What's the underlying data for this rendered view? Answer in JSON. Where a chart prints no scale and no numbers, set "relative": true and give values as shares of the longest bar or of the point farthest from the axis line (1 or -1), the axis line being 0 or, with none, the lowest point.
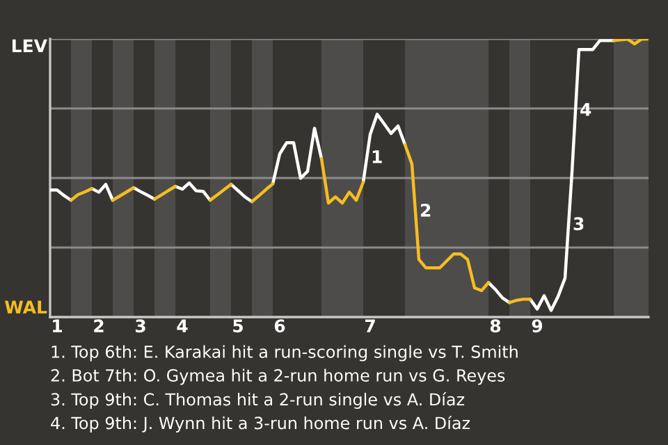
{
  "chart_data": {
    "type": "line",
    "relative": true,
    "categories": [
      null,
      "1",
      null,
      null,
      null,
      null,
      null,
      "2",
      null,
      null,
      null,
      null,
      null,
      "3",
      null,
      null,
      null,
      null,
      null,
      "4",
      null,
      null,
      null,
      null,
      null,
      null,
      null,
      "5",
      null,
      null,
      null,
      null,
      null,
      "6",
      null,
      null,
      null,
      null,
      null,
      null,
      null,
      null,
      null,
      null,
      null,
      null,
      "7",
      null,
      null,
      null,
      null,
      null,
      null,
      null,
      null,
      null,
      null,
      null,
      null,
      null,
      null,
      null,
      null,
      null,
      "8",
      null,
      null,
      null,
      null,
      null,
      "9",
      null,
      null,
      null,
      null,
      null,
      null,
      null,
      null,
      null,
      null,
      null,
      null,
      null,
      null,
      null,
      null
    ],
    "grid": "y",
    "marker": "none",
    "line_style": "solid",
    "series": [
      {
        "color": "#ffffff",
        "values": [
          0.457,
          0.457,
          0.437,
          0.42,
          null,
          null,
          0.462,
          0.449,
          0.477,
          0.42,
          null,
          null,
          0.465,
          0.451,
          0.438,
          0.424,
          null,
          null,
          0.47,
          0.46,
          0.482,
          0.454,
          0.452,
          0.42,
          null,
          null,
          0.477,
          0.455,
          0.432,
          0.415,
          null,
          null,
          0.479,
          0.587,
          0.627,
          0.627,
          0.499,
          0.524,
          0.679,
          0.57,
          null,
          null,
          null,
          null,
          null,
          0.485,
          0.657,
          0.729,
          0.695,
          0.66,
          0.687,
          0.62,
          null,
          null,
          null,
          null,
          null,
          null,
          null,
          null,
          null,
          null,
          null,
          0.124,
          0.099,
          0.069,
          0.052,
          null,
          null,
          0.064,
          0.029,
          0.077,
          0.024,
          0.074,
          0.14,
          0.52,
          0.962,
          0.962,
          0.962,
          0.994,
          0.994,
          0.994,
          null,
          null,
          null,
          null,
          null
        ]
      },
      {
        "color": "#f5bd22",
        "values": [
          null,
          null,
          null,
          0.42,
          0.44,
          0.45,
          0.462,
          null,
          null,
          0.42,
          0.435,
          0.45,
          0.465,
          null,
          null,
          0.424,
          0.439,
          0.455,
          0.47,
          null,
          null,
          null,
          null,
          0.42,
          0.439,
          0.458,
          0.477,
          null,
          null,
          0.415,
          0.436,
          0.458,
          0.479,
          null,
          null,
          null,
          null,
          null,
          null,
          0.57,
          0.41,
          0.432,
          0.41,
          0.449,
          0.42,
          0.485,
          null,
          null,
          null,
          null,
          null,
          0.62,
          0.55,
          0.207,
          0.177,
          0.177,
          0.177,
          0.202,
          0.227,
          0.227,
          0.207,
          0.105,
          0.095,
          0.124,
          null,
          null,
          0.052,
          0.06,
          0.064,
          0.064,
          null,
          null,
          null,
          null,
          null,
          null,
          null,
          null,
          null,
          null,
          null,
          0.994,
          0.997,
          0.999,
          0.982,
          0.999,
          1
        ]
      }
    ],
    "annotations": [
      "LEV",
      "WAL",
      "1",
      "2",
      "3",
      "4",
      "1. Top 6th: E. Karakai hit a run-scoring single vs T. Smith",
      "2. Bot 7th: O. Gymea hit a 2-run home run vs G. Reyes",
      "3. Top 9th: C. Thomas hit a 2-run single vs A. Díaz",
      "4. Top 9th: J. Wynn hit a 3-run home run vs A. Díaz"
    ]
  }
}
